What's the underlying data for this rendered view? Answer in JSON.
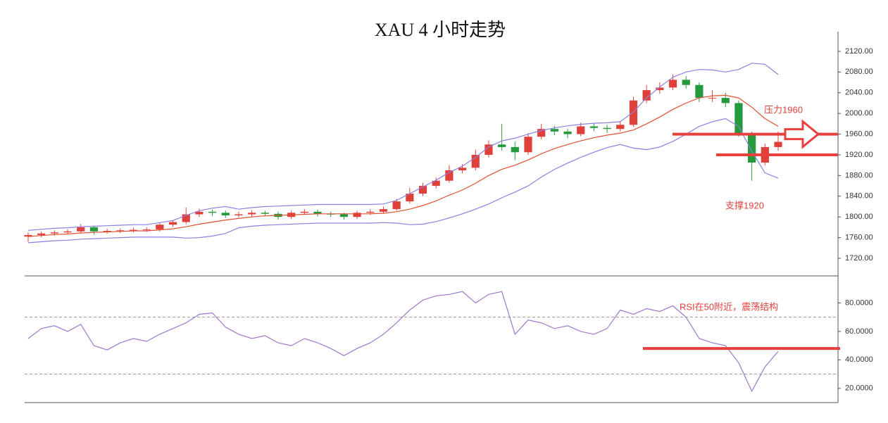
{
  "chart_data": [
    {
      "type": "candlestick",
      "title": "XAU 4 小时走势",
      "ylim": [
        1686,
        2158
      ],
      "yticks": [
        {
          "value": 1720,
          "label": "1720.00"
        },
        {
          "value": 1760,
          "label": "1760.00"
        },
        {
          "value": 1800,
          "label": "1800.00"
        },
        {
          "value": 1840,
          "label": "1840.00"
        },
        {
          "value": 1880,
          "label": "1880.00"
        },
        {
          "value": 1920,
          "label": "1920.00"
        },
        {
          "value": 1960,
          "label": "1960.00"
        },
        {
          "value": 2000,
          "label": "2000.00"
        },
        {
          "value": 2040,
          "label": "2040.00"
        },
        {
          "value": 2080,
          "label": "2080.00"
        },
        {
          "value": 2120,
          "label": "2120.00"
        }
      ],
      "up_color": "#e0403a",
      "down_color": "#249a3c",
      "open": [
        1762,
        1765,
        1768,
        1770,
        1772,
        1780,
        1772,
        1773,
        1774,
        1775,
        1776,
        1785,
        1790,
        1805,
        1810,
        1808,
        1803,
        1805,
        1808,
        1806,
        1800,
        1808,
        1810,
        1806,
        1805,
        1800,
        1808,
        1810,
        1815,
        1830,
        1845,
        1860,
        1870,
        1890,
        1895,
        1920,
        1940,
        1935,
        1925,
        1955,
        1970,
        1965,
        1960,
        1975,
        1972,
        1970,
        1978,
        2025,
        2045,
        2050,
        2065,
        2055,
        2030,
        2030,
        2020,
        1960,
        1905,
        1935
      ],
      "high": [
        1770,
        1772,
        1774,
        1776,
        1786,
        1783,
        1777,
        1778,
        1779,
        1780,
        1789,
        1794,
        1818,
        1816,
        1814,
        1812,
        1810,
        1813,
        1812,
        1810,
        1812,
        1815,
        1814,
        1810,
        1808,
        1812,
        1815,
        1820,
        1835,
        1856,
        1866,
        1876,
        1900,
        1902,
        1930,
        1948,
        1980,
        1945,
        1962,
        1980,
        1976,
        1970,
        1982,
        1980,
        1978,
        1985,
        2032,
        2055,
        2060,
        2075,
        2072,
        2060,
        2045,
        2040,
        2025,
        1965,
        1942,
        1965
      ],
      "low": [
        1752,
        1761,
        1764,
        1766,
        1768,
        1766,
        1768,
        1769,
        1770,
        1771,
        1772,
        1781,
        1786,
        1800,
        1802,
        1798,
        1799,
        1800,
        1801,
        1795,
        1796,
        1804,
        1801,
        1800,
        1795,
        1796,
        1804,
        1806,
        1812,
        1826,
        1840,
        1855,
        1866,
        1884,
        1890,
        1915,
        1928,
        1910,
        1920,
        1950,
        1958,
        1952,
        1956,
        1966,
        1962,
        1965,
        1974,
        2020,
        2038,
        2045,
        2048,
        2022,
        2022,
        2012,
        1955,
        1870,
        1900,
        1928
      ],
      "close": [
        1765,
        1768,
        1770,
        1772,
        1780,
        1772,
        1773,
        1774,
        1775,
        1776,
        1785,
        1790,
        1805,
        1810,
        1808,
        1803,
        1805,
        1808,
        1806,
        1800,
        1808,
        1810,
        1806,
        1805,
        1800,
        1808,
        1810,
        1815,
        1830,
        1845,
        1860,
        1870,
        1890,
        1895,
        1920,
        1940,
        1935,
        1925,
        1955,
        1970,
        1965,
        1960,
        1975,
        1972,
        1970,
        1978,
        2025,
        2045,
        2050,
        2065,
        2055,
        2030,
        2030,
        2020,
        1960,
        1905,
        1935,
        1945
      ],
      "bands": {
        "band_color": "#8a80e0",
        "middle_color": "#e05030",
        "upper": [
          1774,
          1776,
          1778,
          1779,
          1781,
          1782,
          1783,
          1784,
          1785,
          1785,
          1789,
          1793,
          1803,
          1812,
          1817,
          1820,
          1815,
          1818,
          1820,
          1821,
          1822,
          1823,
          1824,
          1824,
          1824,
          1824,
          1824,
          1825,
          1832,
          1845,
          1858,
          1871,
          1886,
          1898,
          1915,
          1935,
          1947,
          1952,
          1960,
          1967,
          1972,
          1976,
          1979,
          1981,
          1982,
          1984,
          2003,
          2030,
          2051,
          2070,
          2080,
          2085,
          2084,
          2080,
          2085,
          2097,
          2095,
          2075
        ],
        "middle": [
          1762,
          1764,
          1766,
          1767,
          1769,
          1770,
          1771,
          1772,
          1773,
          1773,
          1775,
          1777,
          1781,
          1786,
          1790,
          1794,
          1797,
          1800,
          1802,
          1803,
          1804,
          1805,
          1806,
          1806,
          1806,
          1806,
          1806,
          1807,
          1810,
          1815,
          1822,
          1831,
          1842,
          1852,
          1865,
          1880,
          1892,
          1900,
          1910,
          1922,
          1932,
          1940,
          1947,
          1953,
          1958,
          1962,
          1968,
          1980,
          1993,
          2008,
          2020,
          2030,
          2034,
          2035,
          2030,
          2012,
          1990,
          1975
        ],
        "lower": [
          1750,
          1752,
          1754,
          1755,
          1757,
          1758,
          1759,
          1760,
          1761,
          1761,
          1761,
          1761,
          1759,
          1760,
          1763,
          1768,
          1779,
          1782,
          1784,
          1785,
          1786,
          1787,
          1788,
          1788,
          1788,
          1788,
          1788,
          1789,
          1788,
          1785,
          1786,
          1791,
          1798,
          1806,
          1815,
          1825,
          1837,
          1848,
          1860,
          1877,
          1892,
          1904,
          1915,
          1925,
          1934,
          1940,
          1933,
          1930,
          1935,
          1946,
          1960,
          1975,
          1984,
          1990,
          1975,
          1927,
          1885,
          1875
        ]
      },
      "levels": [
        1960,
        1920
      ],
      "level_color": "#e8403c",
      "annotations": [
        "压力1960",
        "支撑1920"
      ]
    },
    {
      "type": "line",
      "ylim": [
        10,
        99
      ],
      "yticks": [
        {
          "value": 20,
          "label": "20.0000"
        },
        {
          "value": 40,
          "label": "40.0000"
        },
        {
          "value": 60,
          "label": "60.0000"
        },
        {
          "value": 80,
          "label": "80.0000"
        }
      ],
      "dashed_levels": [
        30,
        70
      ],
      "color": "#a078c8",
      "values": [
        55,
        62,
        64,
        60,
        65,
        50,
        47,
        52,
        55,
        53,
        58,
        62,
        66,
        72,
        73,
        63,
        58,
        55,
        57,
        52,
        50,
        55,
        52,
        48,
        43,
        48,
        52,
        58,
        66,
        75,
        82,
        85,
        86,
        88,
        80,
        86,
        88,
        58,
        68,
        66,
        62,
        64,
        60,
        58,
        62,
        75,
        72,
        76,
        74,
        78,
        70,
        55,
        52,
        50,
        38,
        18,
        35,
        46
      ],
      "levels": [
        48
      ],
      "level_color": "#e8403c",
      "annotations": [
        "RSI在50附近，震荡结构"
      ]
    }
  ]
}
